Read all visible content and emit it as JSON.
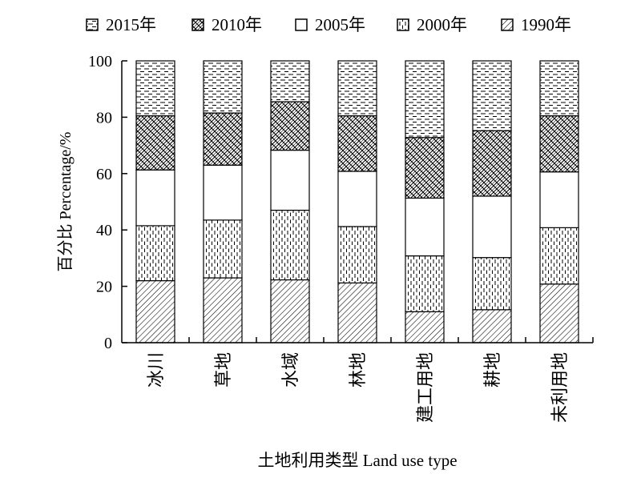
{
  "chart_data": {
    "type": "bar",
    "stacked": true,
    "categories": [
      "冰川",
      "草地",
      "水域",
      "林地",
      "建工用地",
      "耕地",
      "未利用地"
    ],
    "series": [
      {
        "name": "1990年",
        "pattern": "diagonal-hatch",
        "values": [
          22,
          23,
          22.3,
          21.2,
          11,
          11.7,
          20.8
        ]
      },
      {
        "name": "2000年",
        "pattern": "vertical-dashes",
        "values": [
          19.5,
          20.5,
          24.7,
          20,
          19.8,
          18.5,
          20
        ]
      },
      {
        "name": "2005年",
        "pattern": "blank",
        "values": [
          19.8,
          19.5,
          21.3,
          19.6,
          20.5,
          21.8,
          19.8
        ]
      },
      {
        "name": "2010年",
        "pattern": "crosshatch",
        "values": [
          19.2,
          18.5,
          17.2,
          19.7,
          21.5,
          23.2,
          19.9
        ]
      },
      {
        "name": "2015年",
        "pattern": "horizontal-dashes",
        "values": [
          19.5,
          18.5,
          14.5,
          19.5,
          27.2,
          24.8,
          19.5
        ]
      }
    ],
    "legend_order": [
      "2015年",
      "2010年",
      "2005年",
      "2000年",
      "1990年"
    ],
    "ylabel": "百分比 Percentage/%",
    "xlabel": "土地利用类型 Land use type",
    "ylim": [
      0,
      100
    ],
    "yticks": [
      0,
      20,
      40,
      60,
      80,
      100
    ],
    "legend_position": "top",
    "grid": false
  }
}
